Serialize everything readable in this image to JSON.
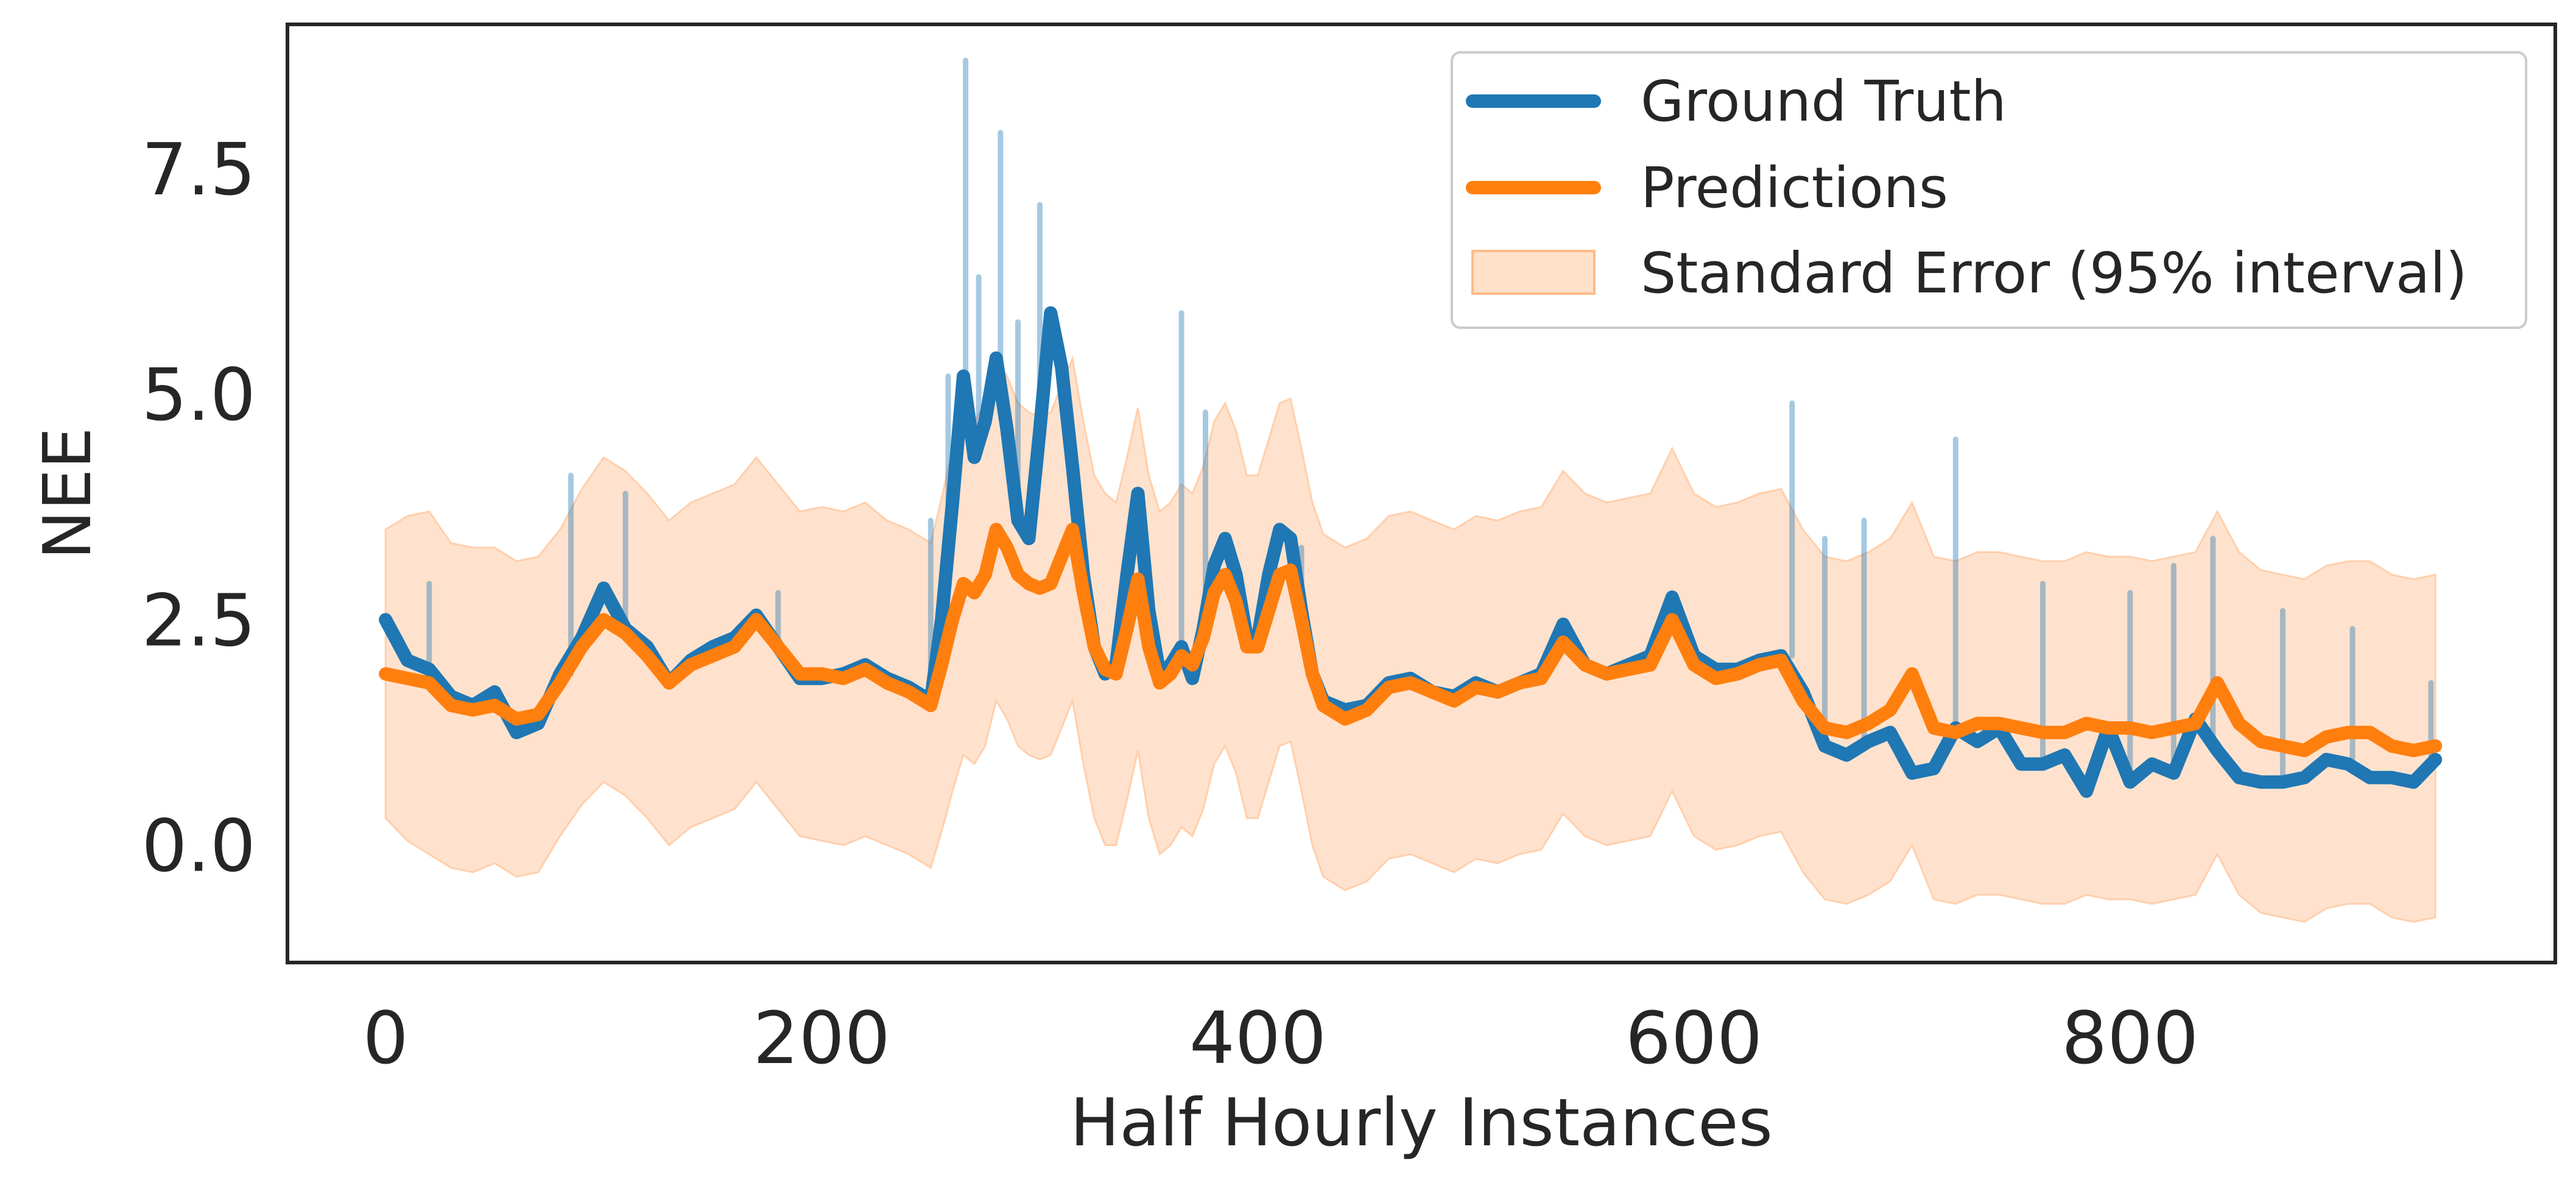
{
  "chart_data": {
    "type": "line",
    "title": "",
    "xlabel": "Half Hourly Instances",
    "ylabel": "NEE",
    "xlim": [
      -45,
      995
    ],
    "ylim": [
      -1.3,
      9.1
    ],
    "x_ticks": [
      0,
      200,
      400,
      600,
      800
    ],
    "x_tick_labels": [
      "0",
      "200",
      "400",
      "600",
      "800"
    ],
    "y_ticks": [
      0.0,
      2.5,
      5.0,
      7.5
    ],
    "y_tick_labels": [
      "0.0",
      "2.5",
      "5.0",
      "7.5"
    ],
    "grid": false,
    "legend_position": "top-right",
    "x": [
      0,
      10,
      20,
      30,
      40,
      50,
      60,
      70,
      80,
      90,
      100,
      110,
      120,
      130,
      140,
      150,
      160,
      170,
      180,
      190,
      200,
      210,
      220,
      230,
      240,
      250,
      255,
      260,
      265,
      270,
      275,
      280,
      285,
      290,
      295,
      300,
      305,
      310,
      315,
      320,
      325,
      330,
      335,
      340,
      345,
      350,
      355,
      360,
      365,
      370,
      375,
      380,
      385,
      390,
      395,
      400,
      405,
      410,
      415,
      420,
      425,
      430,
      440,
      450,
      460,
      470,
      480,
      490,
      500,
      510,
      520,
      530,
      540,
      550,
      560,
      570,
      580,
      590,
      600,
      610,
      620,
      630,
      640,
      650,
      660,
      670,
      680,
      690,
      700,
      710,
      720,
      730,
      740,
      750,
      760,
      770,
      780,
      790,
      800,
      810,
      820,
      830,
      840,
      850,
      860,
      870,
      880,
      890,
      900,
      910,
      920,
      930,
      940
    ],
    "series": [
      {
        "name": "Ground Truth",
        "color": "#1f77b4",
        "values": [
          2.5,
          2.05,
          1.95,
          1.65,
          1.55,
          1.7,
          1.25,
          1.35,
          1.9,
          2.3,
          2.85,
          2.4,
          2.2,
          1.8,
          2.05,
          2.2,
          2.3,
          2.55,
          2.2,
          1.85,
          1.85,
          1.9,
          2.0,
          1.85,
          1.75,
          1.6,
          2.5,
          3.8,
          5.2,
          4.3,
          4.7,
          5.4,
          4.6,
          3.6,
          3.4,
          4.6,
          5.9,
          5.3,
          4.2,
          3.0,
          2.2,
          1.9,
          2.0,
          3.0,
          3.9,
          2.6,
          1.9,
          2.0,
          2.2,
          1.85,
          2.4,
          3.1,
          3.4,
          3.0,
          2.3,
          2.3,
          3.0,
          3.5,
          3.4,
          2.6,
          1.9,
          1.6,
          1.5,
          1.55,
          1.8,
          1.85,
          1.7,
          1.65,
          1.8,
          1.7,
          1.8,
          1.9,
          2.45,
          2.0,
          1.9,
          2.0,
          2.1,
          2.75,
          2.1,
          1.95,
          1.95,
          2.05,
          2.1,
          1.7,
          1.1,
          1.0,
          1.15,
          1.25,
          0.8,
          0.85,
          1.3,
          1.15,
          1.3,
          0.9,
          0.9,
          1.0,
          0.6,
          1.3,
          0.7,
          0.9,
          0.8,
          1.4,
          1.05,
          0.75,
          0.7,
          0.7,
          0.75,
          0.95,
          0.9,
          0.75,
          0.75,
          0.7,
          0.95
        ]
      },
      {
        "name": "Predictions",
        "color": "#ff7f0e",
        "values": [
          1.9,
          1.85,
          1.8,
          1.55,
          1.5,
          1.55,
          1.4,
          1.45,
          1.8,
          2.2,
          2.5,
          2.35,
          2.1,
          1.8,
          2.0,
          2.1,
          2.2,
          2.5,
          2.2,
          1.9,
          1.9,
          1.85,
          1.95,
          1.8,
          1.7,
          1.55,
          2.0,
          2.5,
          2.9,
          2.8,
          3.0,
          3.5,
          3.3,
          3.0,
          2.9,
          2.85,
          2.9,
          3.2,
          3.5,
          2.8,
          2.2,
          1.95,
          1.9,
          2.4,
          2.95,
          2.2,
          1.8,
          1.9,
          2.1,
          2.0,
          2.3,
          2.8,
          3.0,
          2.7,
          2.2,
          2.2,
          2.6,
          3.0,
          3.05,
          2.5,
          1.9,
          1.55,
          1.4,
          1.5,
          1.75,
          1.8,
          1.7,
          1.6,
          1.75,
          1.7,
          1.8,
          1.85,
          2.25,
          2.0,
          1.9,
          1.95,
          2.0,
          2.5,
          2.0,
          1.85,
          1.9,
          2.0,
          2.05,
          1.6,
          1.3,
          1.25,
          1.35,
          1.5,
          1.9,
          1.3,
          1.25,
          1.35,
          1.35,
          1.3,
          1.25,
          1.25,
          1.35,
          1.3,
          1.3,
          1.25,
          1.3,
          1.35,
          1.8,
          1.35,
          1.15,
          1.1,
          1.05,
          1.2,
          1.25,
          1.25,
          1.1,
          1.05,
          1.1
        ]
      }
    ],
    "band": {
      "name": "Standard Error (95% interval)",
      "color": "#ffbb88",
      "lower": [
        0.3,
        0.05,
        -0.1,
        -0.25,
        -0.3,
        -0.2,
        -0.35,
        -0.3,
        0.1,
        0.45,
        0.7,
        0.55,
        0.3,
        0.0,
        0.2,
        0.3,
        0.4,
        0.7,
        0.4,
        0.1,
        0.05,
        0.0,
        0.1,
        0.0,
        -0.1,
        -0.25,
        0.15,
        0.6,
        1.0,
        0.9,
        1.1,
        1.6,
        1.4,
        1.1,
        1.0,
        0.95,
        1.0,
        1.3,
        1.6,
        0.9,
        0.3,
        0.0,
        0.0,
        0.5,
        1.05,
        0.3,
        -0.1,
        0.0,
        0.2,
        0.1,
        0.4,
        0.9,
        1.1,
        0.8,
        0.3,
        0.3,
        0.7,
        1.1,
        1.15,
        0.6,
        0.0,
        -0.35,
        -0.5,
        -0.4,
        -0.15,
        -0.1,
        -0.2,
        -0.3,
        -0.15,
        -0.2,
        -0.1,
        -0.05,
        0.35,
        0.1,
        0.0,
        0.05,
        0.1,
        0.6,
        0.1,
        -0.05,
        0.0,
        0.1,
        0.15,
        -0.3,
        -0.6,
        -0.65,
        -0.55,
        -0.4,
        0.0,
        -0.6,
        -0.65,
        -0.55,
        -0.55,
        -0.6,
        -0.65,
        -0.65,
        -0.55,
        -0.6,
        -0.6,
        -0.65,
        -0.6,
        -0.55,
        -0.1,
        -0.55,
        -0.75,
        -0.8,
        -0.85,
        -0.7,
        -0.65,
        -0.65,
        -0.8,
        -0.85,
        -0.8
      ],
      "upper": [
        3.5,
        3.65,
        3.7,
        3.35,
        3.3,
        3.3,
        3.15,
        3.2,
        3.5,
        3.95,
        4.3,
        4.15,
        3.9,
        3.6,
        3.8,
        3.9,
        4.0,
        4.3,
        4.0,
        3.7,
        3.75,
        3.7,
        3.8,
        3.6,
        3.5,
        3.35,
        3.85,
        4.4,
        4.8,
        4.7,
        4.9,
        5.4,
        5.2,
        4.9,
        4.8,
        4.75,
        4.8,
        5.1,
        5.4,
        4.7,
        4.1,
        3.9,
        3.8,
        4.3,
        4.85,
        4.1,
        3.7,
        3.8,
        4.0,
        3.9,
        4.2,
        4.7,
        4.9,
        4.6,
        4.1,
        4.1,
        4.5,
        4.9,
        4.95,
        4.4,
        3.8,
        3.45,
        3.3,
        3.4,
        3.65,
        3.7,
        3.6,
        3.5,
        3.65,
        3.6,
        3.7,
        3.75,
        4.15,
        3.9,
        3.8,
        3.85,
        3.9,
        4.4,
        3.9,
        3.75,
        3.8,
        3.9,
        3.95,
        3.5,
        3.2,
        3.15,
        3.25,
        3.4,
        3.8,
        3.2,
        3.15,
        3.25,
        3.25,
        3.2,
        3.15,
        3.15,
        3.25,
        3.2,
        3.2,
        3.15,
        3.2,
        3.25,
        3.7,
        3.25,
        3.05,
        3.0,
        2.95,
        3.1,
        3.15,
        3.15,
        3.0,
        2.95,
        3.0
      ]
    },
    "spikes": {
      "x": [
        20,
        85,
        110,
        180,
        250,
        258,
        266,
        272,
        282,
        290,
        300,
        345,
        365,
        376,
        420,
        645,
        660,
        678,
        720,
        760,
        800,
        820,
        838,
        870,
        902,
        938
      ],
      "values": [
        2.9,
        4.1,
        3.9,
        2.8,
        3.6,
        5.2,
        8.7,
        6.3,
        7.9,
        5.8,
        7.1,
        3.9,
        5.9,
        4.8,
        3.3,
        4.9,
        3.4,
        3.6,
        4.5,
        2.9,
        2.8,
        3.1,
        3.4,
        2.6,
        2.4,
        1.8
      ]
    }
  }
}
